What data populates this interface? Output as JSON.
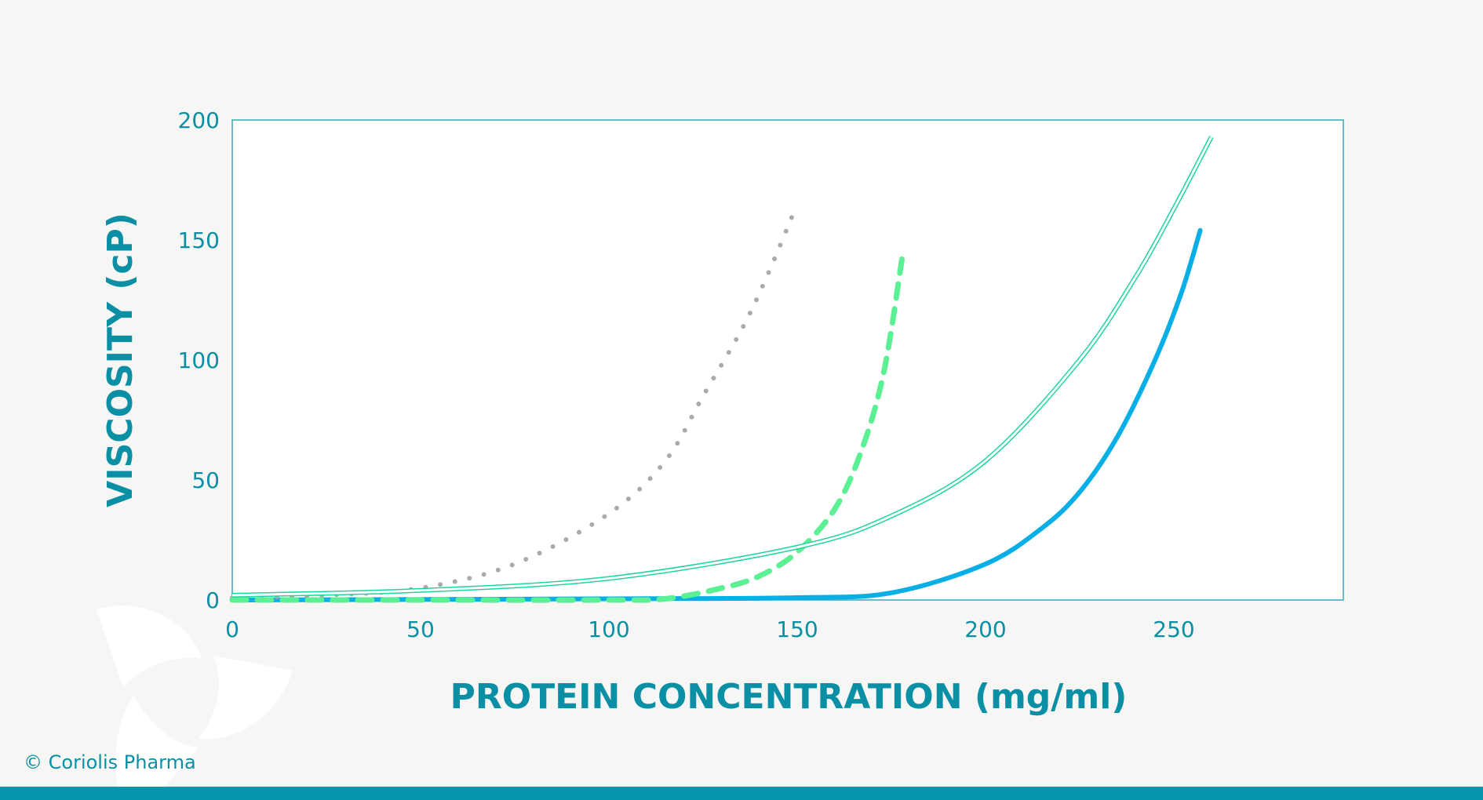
{
  "chart_data": {
    "type": "line",
    "title": "",
    "xlabel": "PROTEIN CONCENTRATION (mg/ml)",
    "ylabel": "VISCOSITY (cP)",
    "xlim": [
      0,
      295
    ],
    "ylim": [
      0,
      200
    ],
    "xticks": [
      0,
      50,
      100,
      150,
      200,
      250
    ],
    "yticks": [
      0,
      50,
      100,
      150,
      200
    ],
    "grid": false,
    "legend": "none",
    "series": [
      {
        "style": "dotted",
        "color": "#aaaaaa",
        "x": [
          0,
          25,
          50,
          75,
          100,
          115,
          125,
          135,
          142,
          150
        ],
        "y": [
          1,
          2,
          5,
          15,
          36,
          58,
          85,
          112,
          135,
          165
        ]
      },
      {
        "style": "dashed",
        "color": "#5cf095",
        "x": [
          0,
          50,
          100,
          115,
          130,
          140,
          150,
          160,
          167,
          173,
          178
        ],
        "y": [
          0,
          0,
          0,
          0.5,
          5,
          10,
          20,
          38,
          62,
          95,
          144
        ]
      },
      {
        "style": "double",
        "color": "#1ed4a0",
        "x": [
          0,
          50,
          100,
          150,
          175,
          200,
          225,
          240,
          250,
          260
        ],
        "y": [
          2,
          4,
          9,
          22,
          35,
          58,
          100,
          135,
          163,
          193
        ]
      },
      {
        "style": "solid",
        "color": "#08aee6",
        "x": [
          0,
          100,
          150,
          175,
          200,
          215,
          225,
          235,
          245,
          252,
          257
        ],
        "y": [
          0,
          0.5,
          1,
          3,
          15,
          30,
          45,
          68,
          100,
          128,
          154
        ]
      }
    ]
  },
  "footer": {
    "copyright": "© Coriolis Pharma",
    "bar_color": "#0595ae"
  },
  "colors": {
    "text": "#0a8fa5",
    "frame": "#38a6b8",
    "background": "#f6f6f4"
  }
}
